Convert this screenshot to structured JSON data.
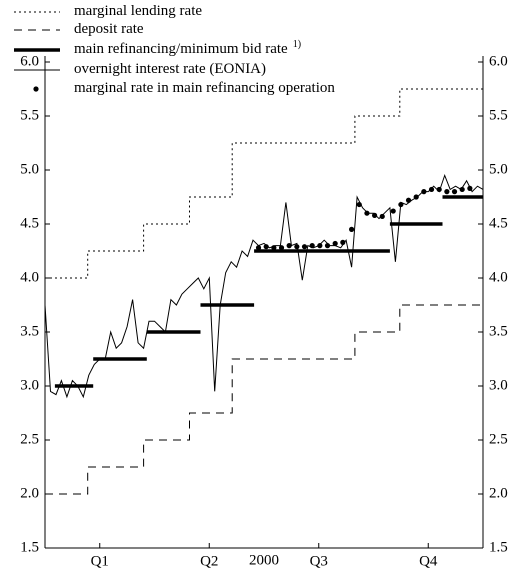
{
  "chart_data": {
    "type": "line",
    "xlabel": "2000",
    "xlim": [
      0,
      4
    ],
    "xticks": [
      {
        "value": 0.5,
        "label": "Q1"
      },
      {
        "value": 1.5,
        "label": "Q2"
      },
      {
        "value": 2.5,
        "label": "Q3"
      },
      {
        "value": 3.5,
        "label": "Q4"
      }
    ],
    "ylim": [
      1.5,
      6.0
    ],
    "yticks": [
      {
        "value": 1.5,
        "label": "1.5"
      },
      {
        "value": 2,
        "label": "2.0"
      },
      {
        "value": 2.5,
        "label": "2.5"
      },
      {
        "value": 3,
        "label": "3.0"
      },
      {
        "value": 3.5,
        "label": "3.5"
      },
      {
        "value": 4,
        "label": "4.0"
      },
      {
        "value": 4.5,
        "label": "4.5"
      },
      {
        "value": 5,
        "label": "5.0"
      },
      {
        "value": 5.5,
        "label": "5.5"
      },
      {
        "value": 6,
        "label": "6.0"
      }
    ],
    "right_axis": true,
    "grid": false,
    "series": [
      {
        "name": "marginal lending rate",
        "color": "#000000",
        "style": "dotted",
        "x": [
          0,
          0.39,
          0.39,
          0.9,
          0.9,
          1.32,
          1.32,
          1.71,
          1.71,
          2.83,
          2.83,
          3.24,
          3.24,
          4
        ],
        "values": [
          4,
          4,
          4.25,
          4.25,
          4.5,
          4.5,
          4.75,
          4.75,
          5.25,
          5.25,
          5.5,
          5.5,
          5.75,
          5.75
        ]
      },
      {
        "name": "deposit rate",
        "color": "#000000",
        "style": "dashed",
        "x": [
          0,
          0.39,
          0.39,
          0.9,
          0.9,
          1.32,
          1.32,
          1.71,
          1.71,
          2.83,
          2.83,
          3.24,
          3.24,
          4
        ],
        "values": [
          2,
          2,
          2.25,
          2.25,
          2.5,
          2.5,
          2.75,
          2.75,
          3.25,
          3.25,
          3.5,
          3.5,
          3.75,
          3.75
        ]
      },
      {
        "name": "main refinancing/minimum bid rate",
        "note": "1)",
        "color": "#000000",
        "style": "thick",
        "x": [
          0.09,
          0.44,
          null,
          0.44,
          0.93,
          null,
          0.93,
          1.42,
          null,
          1.42,
          1.91,
          null,
          1.91,
          3.15,
          null,
          3.15,
          3.63,
          null,
          3.63,
          4
        ],
        "values": [
          3,
          3,
          null,
          3.25,
          3.25,
          null,
          3.5,
          3.5,
          null,
          3.75,
          3.75,
          null,
          4.25,
          4.25,
          null,
          4.5,
          4.5,
          null,
          4.75,
          4.75
        ]
      },
      {
        "name": "overnight interest rate (EONIA)",
        "color": "#000000",
        "style": "solid",
        "x": [
          0,
          0.05,
          0.1,
          0.15,
          0.2,
          0.25,
          0.3,
          0.35,
          0.4,
          0.45,
          0.5,
          0.55,
          0.6,
          0.65,
          0.7,
          0.75,
          0.8,
          0.85,
          0.9,
          0.95,
          1.0,
          1.05,
          1.1,
          1.15,
          1.2,
          1.25,
          1.3,
          1.35,
          1.4,
          1.45,
          1.5,
          1.55,
          1.6,
          1.65,
          1.7,
          1.75,
          1.8,
          1.85,
          1.9,
          1.95,
          2.0,
          2.05,
          2.1,
          2.15,
          2.2,
          2.25,
          2.3,
          2.35,
          2.4,
          2.45,
          2.5,
          2.55,
          2.6,
          2.65,
          2.7,
          2.75,
          2.8,
          2.85,
          2.9,
          2.95,
          3.0,
          3.05,
          3.1,
          3.15,
          3.2,
          3.25,
          3.3,
          3.35,
          3.4,
          3.45,
          3.5,
          3.55,
          3.6,
          3.65,
          3.7,
          3.75,
          3.8,
          3.85,
          3.9,
          3.95,
          4.0
        ],
        "values": [
          3.75,
          2.95,
          2.92,
          3.05,
          2.9,
          3.05,
          3.0,
          2.9,
          3.1,
          3.2,
          3.25,
          3.25,
          3.5,
          3.35,
          3.4,
          3.55,
          3.8,
          3.4,
          3.35,
          3.6,
          3.6,
          3.55,
          3.5,
          3.8,
          3.75,
          3.85,
          3.9,
          3.95,
          4.0,
          3.9,
          4.0,
          2.95,
          3.75,
          4.05,
          4.15,
          4.1,
          4.25,
          4.2,
          4.35,
          4.3,
          4.32,
          4.28,
          4.3,
          4.3,
          4.7,
          4.3,
          4.32,
          3.98,
          4.3,
          4.28,
          4.3,
          4.35,
          4.3,
          4.3,
          4.28,
          4.35,
          4.1,
          4.75,
          4.65,
          4.6,
          4.6,
          4.55,
          4.6,
          4.65,
          4.15,
          4.7,
          4.68,
          4.72,
          4.75,
          4.8,
          4.8,
          4.85,
          4.8,
          4.95,
          4.82,
          4.85,
          4.82,
          4.9,
          4.8,
          4.85,
          4.82
        ]
      },
      {
        "name": "marginal rate in main refinancing operation",
        "color": "#000000",
        "style": "dots",
        "x": [
          1.95,
          2.02,
          2.09,
          2.16,
          2.23,
          2.3,
          2.37,
          2.44,
          2.51,
          2.58,
          2.65,
          2.72,
          2.8,
          2.87,
          2.94,
          3.01,
          3.08,
          3.18,
          3.25,
          3.32,
          3.39,
          3.46,
          3.53,
          3.6,
          3.67,
          3.74,
          3.81,
          3.88
        ],
        "values": [
          4.28,
          4.29,
          4.28,
          4.28,
          4.3,
          4.29,
          4.29,
          4.3,
          4.3,
          4.3,
          4.32,
          4.33,
          4.45,
          4.68,
          4.6,
          4.58,
          4.57,
          4.62,
          4.68,
          4.72,
          4.75,
          4.8,
          4.82,
          4.82,
          4.8,
          4.8,
          4.82,
          4.83
        ]
      }
    ]
  }
}
